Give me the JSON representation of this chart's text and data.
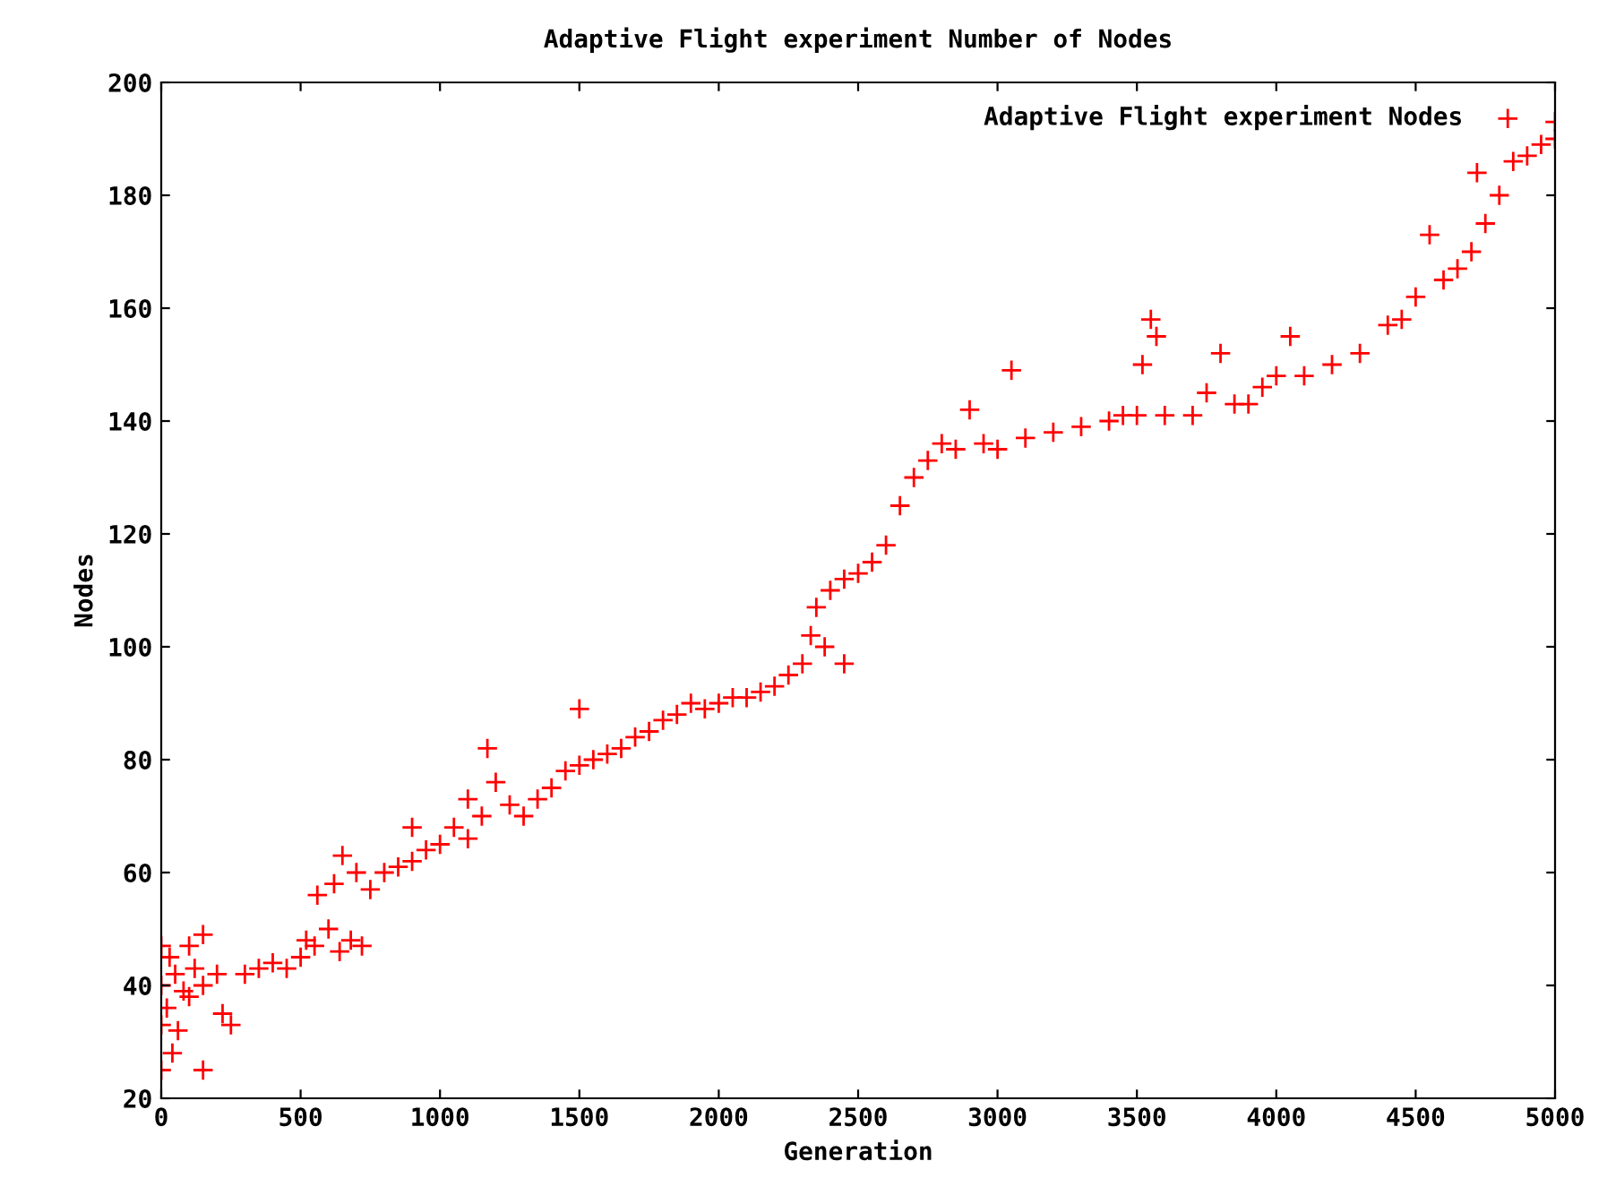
{
  "chart_data": {
    "type": "scatter",
    "title": "Adaptive Flight experiment Number of Nodes",
    "xlabel": "Generation",
    "ylabel": "Nodes",
    "xlim": [
      0,
      5000
    ],
    "ylim": [
      20,
      200
    ],
    "xticks": [
      0,
      500,
      1000,
      1500,
      2000,
      2500,
      3000,
      3500,
      4000,
      4500,
      5000
    ],
    "yticks": [
      20,
      40,
      60,
      80,
      100,
      120,
      140,
      160,
      180,
      200
    ],
    "grid": false,
    "legend": "top right",
    "marker": "cross",
    "series": [
      {
        "name": "Adaptive Flight experiment Nodes",
        "color": "#ff0000",
        "x": [
          0,
          0,
          0,
          0,
          20,
          30,
          40,
          50,
          60,
          80,
          100,
          100,
          120,
          150,
          150,
          150,
          200,
          220,
          250,
          300,
          350,
          400,
          450,
          500,
          520,
          550,
          560,
          600,
          620,
          640,
          650,
          680,
          700,
          720,
          750,
          800,
          850,
          900,
          900,
          950,
          1000,
          1050,
          1100,
          1100,
          1150,
          1170,
          1200,
          1250,
          1300,
          1350,
          1400,
          1450,
          1500,
          1500,
          1550,
          1600,
          1650,
          1700,
          1750,
          1800,
          1850,
          1900,
          1950,
          2000,
          2050,
          2100,
          2150,
          2200,
          2250,
          2300,
          2330,
          2350,
          2380,
          2400,
          2450,
          2450,
          2500,
          2550,
          2600,
          2650,
          2700,
          2750,
          2800,
          2850,
          2900,
          2950,
          3000,
          3050,
          3100,
          3200,
          3300,
          3400,
          3450,
          3500,
          3520,
          3550,
          3570,
          3600,
          3700,
          3750,
          3800,
          3850,
          3900,
          3950,
          4000,
          4050,
          4100,
          4200,
          4300,
          4400,
          4450,
          4500,
          4550,
          4600,
          4650,
          4700,
          4720,
          4750,
          4800,
          4850,
          4900,
          4950,
          5000,
          5000
        ],
        "values": [
          25,
          33,
          40,
          47,
          36,
          45,
          28,
          42,
          32,
          39,
          38,
          47,
          43,
          25,
          40,
          49,
          42,
          35,
          33,
          42,
          43,
          44,
          43,
          45,
          48,
          47,
          56,
          50,
          58,
          46,
          63,
          48,
          60,
          47,
          57,
          60,
          61,
          62,
          68,
          64,
          65,
          68,
          66,
          73,
          70,
          82,
          76,
          72,
          70,
          73,
          75,
          78,
          79,
          89,
          80,
          81,
          82,
          84,
          85,
          87,
          88,
          90,
          89,
          90,
          91,
          91,
          92,
          93,
          95,
          97,
          102,
          107,
          100,
          110,
          97,
          112,
          113,
          115,
          118,
          125,
          130,
          133,
          136,
          135,
          142,
          136,
          135,
          149,
          137,
          138,
          139,
          140,
          141,
          141,
          150,
          158,
          155,
          141,
          141,
          145,
          152,
          143,
          143,
          146,
          148,
          155,
          148,
          150,
          152,
          157,
          158,
          162,
          173,
          165,
          167,
          170,
          184,
          175,
          180,
          186,
          187,
          189,
          190,
          193
        ]
      }
    ]
  }
}
